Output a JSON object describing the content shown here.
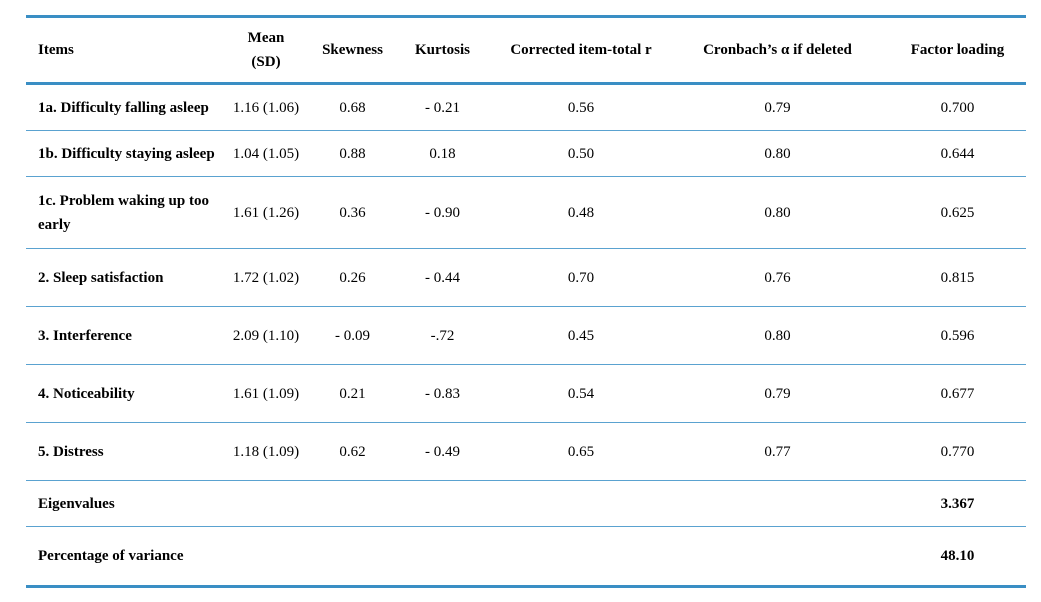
{
  "headers": [
    "Items",
    "Mean\n(SD)",
    "Skewness",
    "Kurtosis",
    "Corrected item-total r",
    "Cronbach’s α if deleted",
    "Factor loading"
  ],
  "rows": [
    [
      "1a. Difficulty falling asleep",
      "1.16 (1.06)",
      "0.68",
      "- 0.21",
      "0.56",
      "0.79",
      "0.700"
    ],
    [
      "1b. Difficulty staying asleep",
      "1.04 (1.05)",
      "0.88",
      "0.18",
      "0.50",
      "0.80",
      "0.644"
    ],
    [
      "1c. Problem waking up too early",
      "1.61 (1.26)",
      "0.36",
      "- 0.90",
      "0.48",
      "0.80",
      "0.625"
    ],
    [
      "2.  Sleep satisfaction",
      "1.72 (1.02)",
      "0.26",
      "- 0.44",
      "0.70",
      "0.76",
      "0.815"
    ],
    [
      "3.  Interference",
      "2.09 (1.10)",
      "- 0.09",
      "-.72",
      "0.45",
      "0.80",
      "0.596"
    ],
    [
      "4.  Noticeability",
      "1.61 (1.09)",
      "0.21",
      "- 0.83",
      "0.54",
      "0.79",
      "0.677"
    ],
    [
      "5.  Distress",
      "1.18 (1.09)",
      "0.62",
      "- 0.49",
      "0.65",
      "0.77",
      "0.770"
    ]
  ],
  "summary": [
    [
      "Eigenvalues",
      "3.367"
    ],
    [
      "Percentage of variance",
      "48.10"
    ]
  ]
}
